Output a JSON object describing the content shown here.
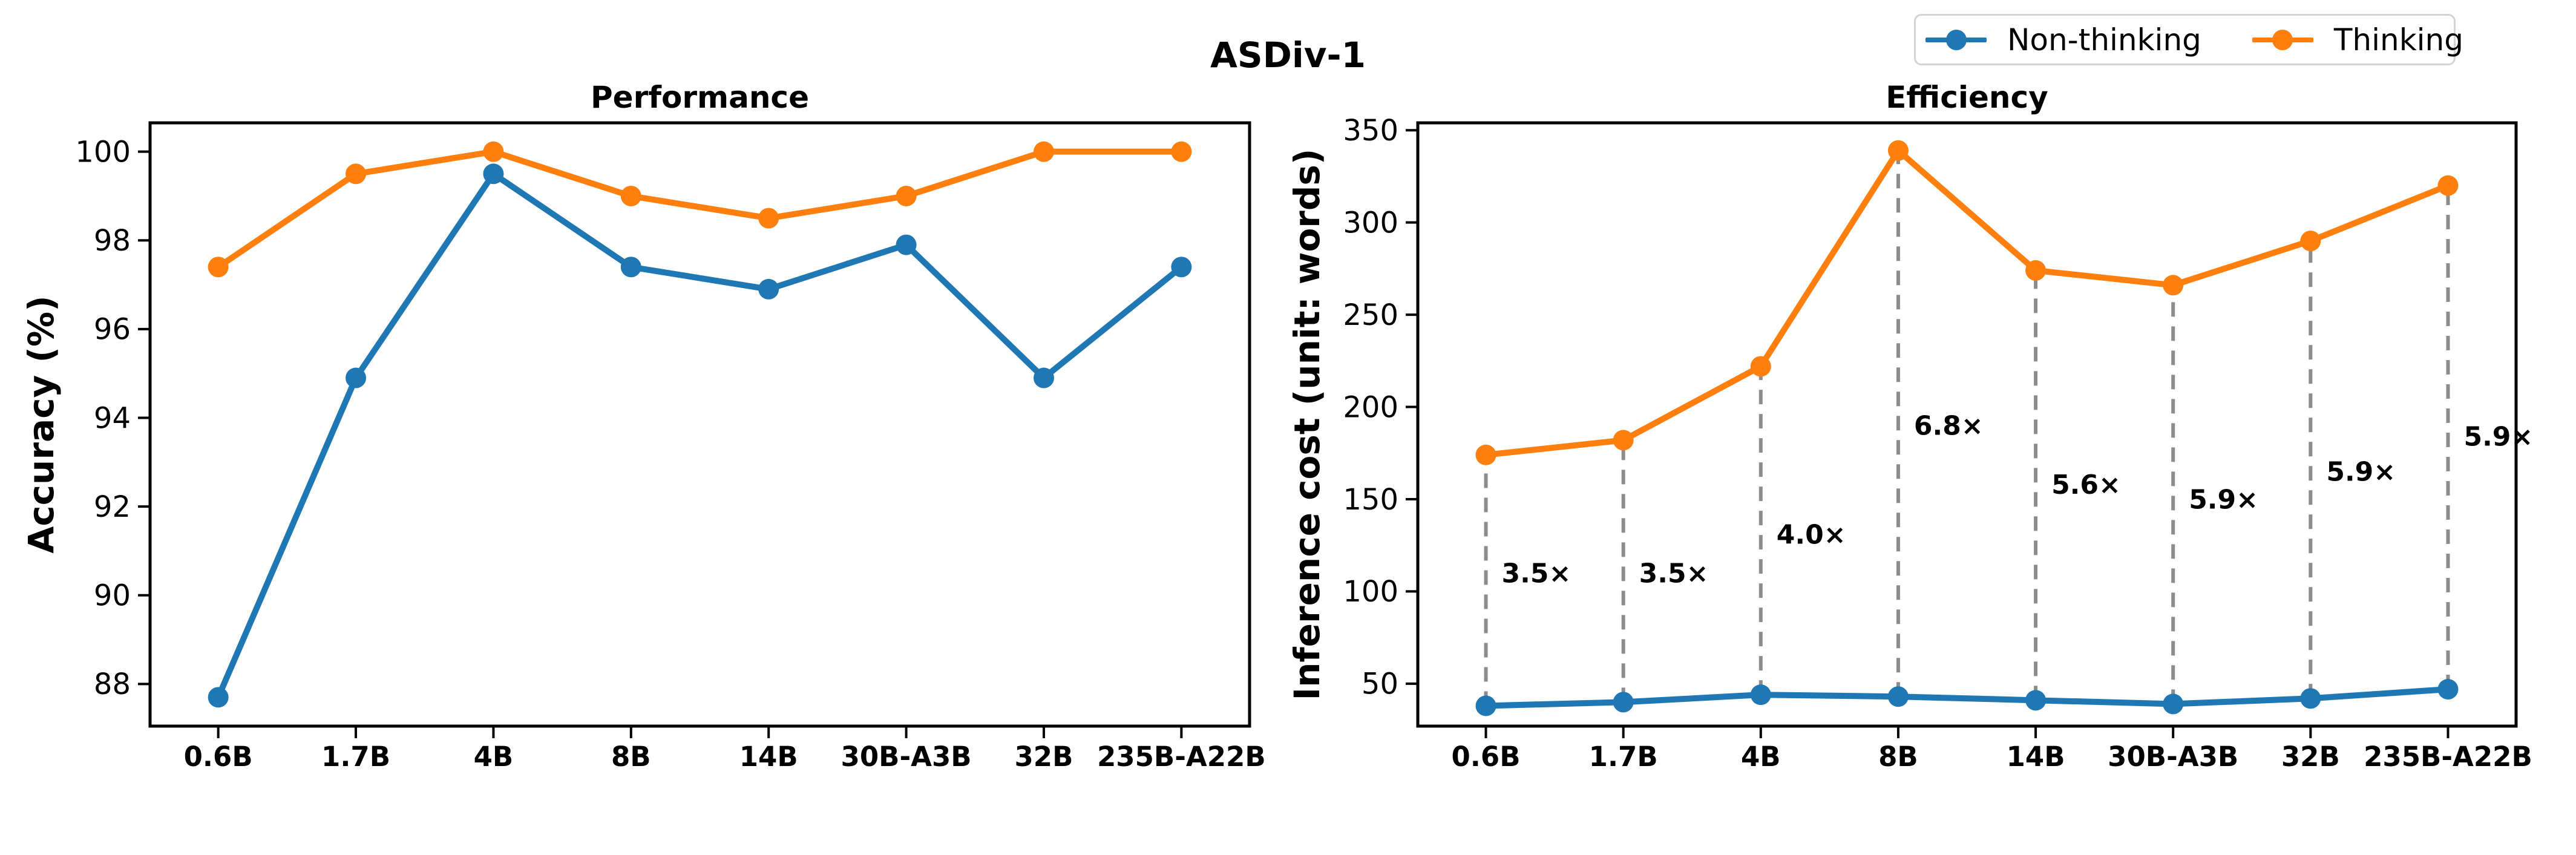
{
  "figure": {
    "title": "ASDiv-1"
  },
  "legend": {
    "items": [
      {
        "label": "Non-thinking",
        "color": "#1f77b4"
      },
      {
        "label": "Thinking",
        "color": "#ff7f0e"
      }
    ]
  },
  "chart_data": [
    {
      "id": "performance",
      "type": "line",
      "title": "Performance",
      "ylabel": "Accuracy (%)",
      "categories": [
        "0.6B",
        "1.7B",
        "4B",
        "8B",
        "14B",
        "30B-A3B",
        "32B",
        "235B-A22B"
      ],
      "series": [
        {
          "name": "Non-thinking",
          "color": "#1f77b4",
          "values": [
            87.7,
            94.9,
            99.5,
            97.4,
            96.9,
            97.9,
            94.9,
            97.4
          ]
        },
        {
          "name": "Thinking",
          "color": "#ff7f0e",
          "values": [
            97.4,
            99.5,
            100.0,
            99.0,
            98.5,
            99.0,
            100.0,
            100.0
          ]
        }
      ],
      "yticks": [
        88,
        90,
        92,
        94,
        96,
        98,
        100
      ],
      "ylim": [
        87.05,
        100.65
      ],
      "grid": false,
      "legend_position": "figure-top-right"
    },
    {
      "id": "efficiency",
      "type": "line",
      "title": "Efficiency",
      "ylabel": "Inference cost (unit: words)",
      "categories": [
        "0.6B",
        "1.7B",
        "4B",
        "8B",
        "14B",
        "30B-A3B",
        "32B",
        "235B-A22B"
      ],
      "series": [
        {
          "name": "Non-thinking",
          "color": "#1f77b4",
          "values": [
            38,
            40,
            44,
            43,
            41,
            39,
            42,
            47
          ]
        },
        {
          "name": "Thinking",
          "color": "#ff7f0e",
          "values": [
            174,
            182,
            222,
            339,
            274,
            266,
            290,
            320
          ]
        }
      ],
      "yticks": [
        50,
        100,
        150,
        200,
        250,
        300,
        350
      ],
      "ylim": [
        27,
        354
      ],
      "grid": false,
      "connectors": {
        "color": "#8c8c8c",
        "style": "dashed"
      },
      "annotations": [
        {
          "category": "0.6B",
          "label": "3.5×",
          "y": 110
        },
        {
          "category": "1.7B",
          "label": "3.5×",
          "y": 110
        },
        {
          "category": "4B",
          "label": "4.0×",
          "y": 131
        },
        {
          "category": "8B",
          "label": "6.8×",
          "y": 190
        },
        {
          "category": "14B",
          "label": "5.6×",
          "y": 158
        },
        {
          "category": "30B-A3B",
          "label": "5.9×",
          "y": 150
        },
        {
          "category": "32B",
          "label": "5.9×",
          "y": 165
        },
        {
          "category": "235B-A22B",
          "label": "5.9×",
          "y": 184
        }
      ]
    }
  ]
}
